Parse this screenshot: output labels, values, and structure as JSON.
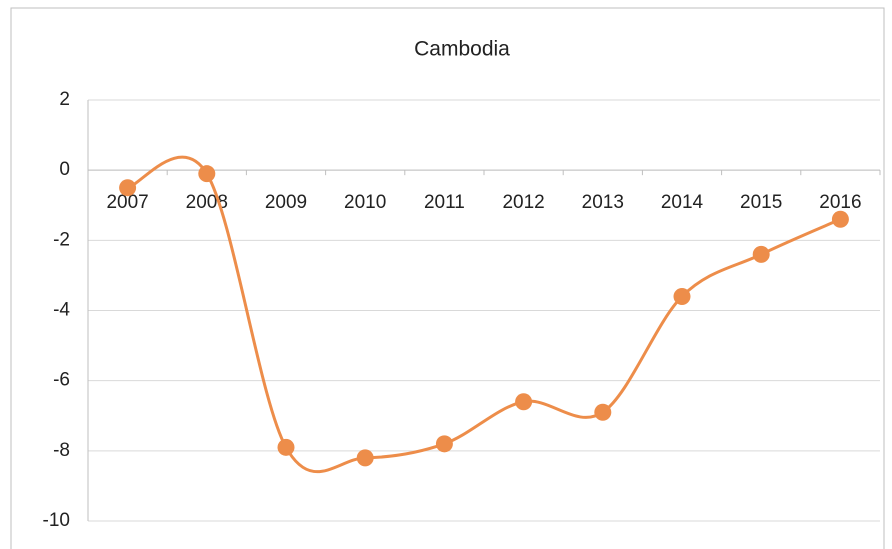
{
  "chart_data": {
    "type": "line",
    "title": "Cambodia",
    "categories": [
      "2007",
      "2008",
      "2009",
      "2010",
      "2011",
      "2012",
      "2013",
      "2014",
      "2015",
      "2016"
    ],
    "values": [
      -0.5,
      -0.1,
      -7.9,
      -8.2,
      -7.8,
      -6.6,
      -6.9,
      -3.6,
      -2.4,
      -1.4
    ],
    "color": "#ed8d4a",
    "ylim": [
      -10,
      2
    ],
    "yticks": [
      -10,
      -8,
      -6,
      -4,
      -2,
      0,
      2
    ],
    "grid": true,
    "smooth": true
  }
}
